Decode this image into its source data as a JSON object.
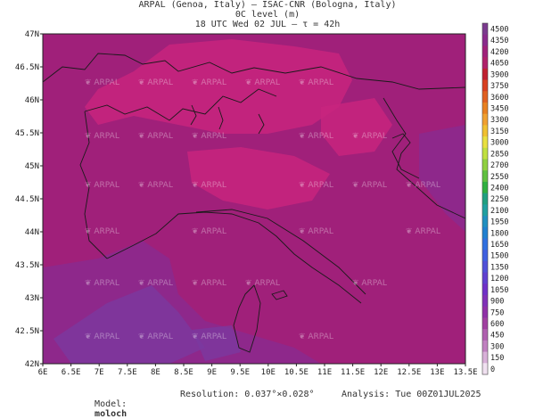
{
  "header": {
    "line1": "ARPAL (Genoa, Italy)  —  ISAC-CNR (Bologna, Italy)",
    "line2": "0C level (m)",
    "line3": "18 UTC Wed 02 JUL   —   τ = 42h"
  },
  "watermark": "ARPAL",
  "map": {
    "lon_ticks": [
      "6E",
      "6.5E",
      "7E",
      "7.5E",
      "8E",
      "8.5E",
      "9E",
      "9.5E",
      "10E",
      "10.5E",
      "11E",
      "11.5E",
      "12E",
      "12.5E",
      "13E",
      "13.5E"
    ],
    "lat_ticks": [
      "47N",
      "46.5N",
      "46N",
      "45.5N",
      "45N",
      "44.5N",
      "44N",
      "43.5N",
      "43N",
      "42.5N",
      "42N"
    ],
    "colors": {
      "base": "#a0207a",
      "high": "#c8257e",
      "low": "#8a2a90",
      "lower": "#7a3aa0",
      "border": "#1a1a1a"
    }
  },
  "colorbar": {
    "levels": [
      "4500",
      "4350",
      "4200",
      "4050",
      "3900",
      "3750",
      "3600",
      "3450",
      "3300",
      "3150",
      "3000",
      "2850",
      "2700",
      "2550",
      "2400",
      "2250",
      "2100",
      "1950",
      "1800",
      "1650",
      "1500",
      "1350",
      "1200",
      "1050",
      "900",
      "750",
      "600",
      "450",
      "300",
      "150",
      "0"
    ],
    "colors": [
      "#7b3a8e",
      "#8a2a8c",
      "#a0207a",
      "#b0206a",
      "#c02030",
      "#d84020",
      "#e06020",
      "#e88020",
      "#f0a030",
      "#f0c030",
      "#e8e040",
      "#c0e040",
      "#90d040",
      "#60c040",
      "#30b040",
      "#20a080",
      "#20a0a0",
      "#2090c0",
      "#2080d0",
      "#3070e0",
      "#4060e0",
      "#5050d8",
      "#6040d0",
      "#7030c8",
      "#8030b8",
      "#9030a8",
      "#a040a0",
      "#b060b0",
      "#c080c0",
      "#d8b0d8",
      "#f0e0f0"
    ]
  },
  "footer": {
    "model_label": "Model:",
    "model_value": "moloch",
    "resolution": "Resolution: 0.037°×0.028°",
    "analysis": "Analysis: Tue 00Z01JUL2025"
  }
}
